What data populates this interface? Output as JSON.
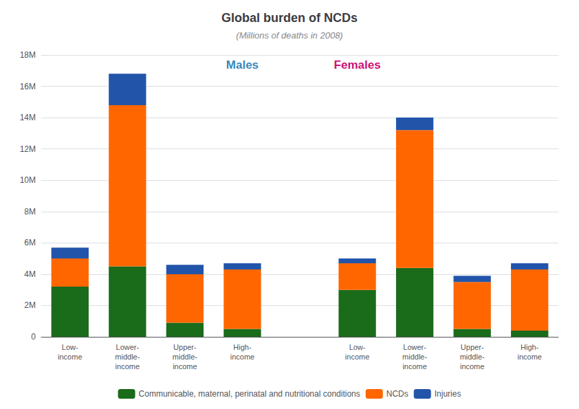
{
  "chart_data": {
    "type": "bar",
    "title": "Global burden of NCDs",
    "subtitle": "(Millions of deaths in 2008)",
    "categories": [
      "Low-\nincome",
      "Lower-\nmiddle-\nincome",
      "Upper-\nmiddle-\nincome",
      "High-\nincome",
      null,
      "Low-\nincome",
      "Lower-\nmiddle-\nincome",
      "Upper-\nmiddle-\nincome",
      "High-\nincome"
    ],
    "series": [
      {
        "name": "Communicable, maternal, perinatal and nutritional conditions",
        "color": "#1a6b1a",
        "values": [
          3.2,
          4.5,
          0.9,
          0.5,
          null,
          3.0,
          4.4,
          0.5,
          0.4
        ]
      },
      {
        "name": "NCDs",
        "color": "#ff6600",
        "values": [
          1.8,
          10.3,
          3.1,
          3.8,
          null,
          1.7,
          8.8,
          3.0,
          3.9
        ]
      },
      {
        "name": "Injuries",
        "color": "#2255aa",
        "values": [
          0.7,
          2.0,
          0.6,
          0.4,
          null,
          0.3,
          0.8,
          0.4,
          0.4
        ]
      }
    ],
    "stacked": true,
    "ylim": [
      0,
      18
    ],
    "yticks": [
      0,
      {
        "value": 2,
        "label": "2M"
      },
      {
        "value": 4,
        "label": "4M"
      },
      {
        "value": 6,
        "label": "6M"
      },
      {
        "value": 8,
        "label": "8M"
      },
      {
        "value": 10,
        "label": "10M"
      },
      {
        "value": 12,
        "label": "12M"
      },
      {
        "value": 14,
        "label": "14M"
      },
      {
        "value": 16,
        "label": "16M"
      },
      {
        "value": 18,
        "label": "18M"
      }
    ],
    "grid": true,
    "legend": "bottom",
    "annotations": [
      {
        "text": "Males",
        "color": "#3a88bb"
      },
      {
        "text": "Females",
        "color": "#cc1177"
      }
    ]
  }
}
